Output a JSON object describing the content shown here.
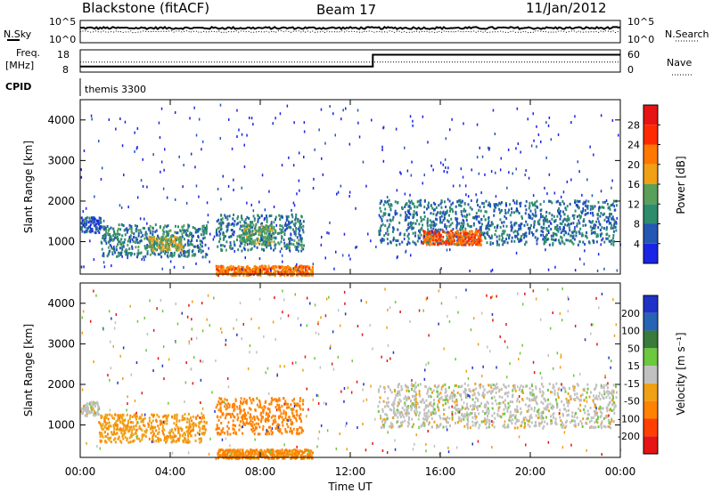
{
  "header": {
    "station": "Blackstone (fitACF)",
    "beam": "Beam 17",
    "date": "11/Jan/2012"
  },
  "strip_labels": {
    "nsky": "N.Sky",
    "nsearch": "N.Search",
    "freq": "Freq.",
    "freq_unit": "[MHz]",
    "nave": "Nave",
    "cpid": "CPID"
  },
  "strip_ticks": {
    "noise_left_top": "10^5",
    "noise_left_bottom": "10^0",
    "noise_right_top": "10^5",
    "noise_right_bottom": "10^0",
    "freq_left_top": "18",
    "freq_left_bottom": "8",
    "nave_right_top": "60",
    "nave_right_bottom": "0"
  },
  "cpid_value": "themis 3300",
  "x_axis": {
    "label": "Time UT",
    "ticks": [
      "00:00",
      "04:00",
      "08:00",
      "12:00",
      "16:00",
      "20:00",
      "00:00"
    ]
  },
  "y_axis": {
    "label": "Slant Range [km]",
    "ticks": [
      "1000",
      "2000",
      "3000",
      "4000"
    ]
  },
  "colorbars": {
    "power": {
      "label": "Power [dB]",
      "ticks": [
        "4",
        "8",
        "12",
        "16",
        "20",
        "24",
        "28"
      ],
      "colors": [
        "#1a24e6",
        "#2456b4",
        "#2d8c6c",
        "#5aa05a",
        "#f0a014",
        "#ff7800",
        "#ff2a00",
        "#e61414"
      ]
    },
    "velocity": {
      "label": "Velocity [m s⁻¹]",
      "ticks": [
        "200",
        "100",
        "50",
        "15",
        "-15",
        "-50",
        "-100",
        "-200"
      ],
      "colors": [
        "#1e32c8",
        "#2864b4",
        "#3a7a3a",
        "#6cc83c",
        "#c0c0c0",
        "#f0a014",
        "#ff8200",
        "#ff4000",
        "#e61414"
      ]
    }
  },
  "chart_data": [
    {
      "type": "line",
      "title": "N.Sky / N.Search noise",
      "x": [
        "00:00",
        "04:00",
        "08:00",
        "12:00",
        "16:00",
        "20:00",
        "24:00"
      ],
      "series": [
        {
          "name": "N.Sky",
          "values": [
            2000,
            2000,
            2000,
            2000,
            2000,
            2000,
            2000
          ]
        },
        {
          "name": "N.Search",
          "values": [
            300,
            300,
            300,
            300,
            300,
            300,
            300
          ]
        }
      ],
      "yscale": "log",
      "ylim": [
        1,
        100000
      ]
    },
    {
      "type": "line",
      "title": "Freq. / Nave",
      "x": [
        "00:00",
        "13:00",
        "13:00",
        "24:00"
      ],
      "series": [
        {
          "name": "Freq. [MHz]",
          "values": [
            10.5,
            10.5,
            15.8,
            15.8
          ]
        },
        {
          "name": "Nave",
          "values": [
            27,
            27,
            27,
            27
          ]
        }
      ],
      "ylim_freq": [
        8,
        18
      ],
      "ylim_nave": [
        0,
        60
      ]
    },
    {
      "type": "heatmap",
      "quantity": "Power [dB]",
      "xlabel": "Time UT",
      "ylabel": "Slant Range [km]",
      "xlim": [
        0,
        24
      ],
      "ylim": [
        200,
        4500
      ],
      "clim": [
        0,
        30
      ],
      "scatter_bands": [
        {
          "t_start": 0.0,
          "t_end": 0.9,
          "range_min": 1250,
          "range_max": 1650,
          "power": 6
        },
        {
          "t_start": 0.9,
          "t_end": 5.6,
          "range_min": 650,
          "range_max": 1450,
          "power": 9
        },
        {
          "t_start": 3.0,
          "t_end": 4.5,
          "range_min": 800,
          "range_max": 1150,
          "power": 15
        },
        {
          "t_start": 6.0,
          "t_end": 9.9,
          "range_min": 800,
          "range_max": 1700,
          "power": 9
        },
        {
          "t_start": 7.2,
          "t_end": 8.5,
          "range_min": 950,
          "range_max": 1450,
          "power": 14
        },
        {
          "t_start": 6.0,
          "t_end": 10.3,
          "range_min": 200,
          "range_max": 430,
          "power": 22
        },
        {
          "t_start": 13.2,
          "t_end": 23.8,
          "range_min": 950,
          "range_max": 2050,
          "power": 8
        },
        {
          "t_start": 15.2,
          "t_end": 17.8,
          "range_min": 950,
          "range_max": 1300,
          "power": 24
        }
      ]
    },
    {
      "type": "heatmap",
      "quantity": "Velocity [m s⁻¹]",
      "xlabel": "Time UT",
      "ylabel": "Slant Range [km]",
      "xlim": [
        0,
        24
      ],
      "ylim": [
        200,
        4500
      ],
      "clim": [
        -200,
        200
      ],
      "scatter_bands": [
        {
          "t_start": 0.0,
          "t_end": 0.8,
          "range_min": 1250,
          "range_max": 1600,
          "velocity": 0
        },
        {
          "t_start": 0.8,
          "t_end": 5.6,
          "range_min": 600,
          "range_max": 1300,
          "velocity": -40
        },
        {
          "t_start": 6.0,
          "t_end": 9.9,
          "range_min": 800,
          "range_max": 1700,
          "velocity": -80
        },
        {
          "t_start": 6.0,
          "t_end": 10.3,
          "range_min": 200,
          "range_max": 420,
          "velocity": -60
        },
        {
          "t_start": 13.2,
          "t_end": 23.8,
          "range_min": 950,
          "range_max": 2050,
          "velocity": 0
        }
      ]
    }
  ]
}
